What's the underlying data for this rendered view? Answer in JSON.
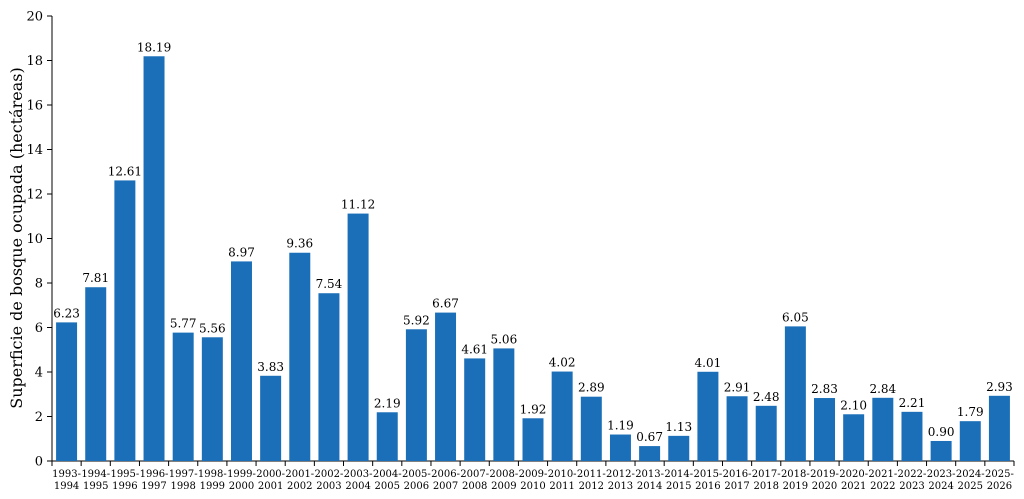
{
  "chart_data": {
    "type": "bar",
    "title": "",
    "xlabel": "",
    "ylabel": "Superficie de bosque ocupada (hectáreas)",
    "ylim": [
      0,
      20
    ],
    "yticks": [
      0,
      2,
      4,
      6,
      8,
      10,
      12,
      14,
      16,
      18,
      20
    ],
    "grid": false,
    "bar_color": "#1a6fb8",
    "categories": [
      [
        "1993-",
        "1994"
      ],
      [
        "1994-",
        "1995"
      ],
      [
        "1995-",
        "1996"
      ],
      [
        "1996-",
        "1997"
      ],
      [
        "1997-",
        "1998"
      ],
      [
        "1998-",
        "1999"
      ],
      [
        "1999-",
        "2000"
      ],
      [
        "2000-",
        "2001"
      ],
      [
        "2001-",
        "2002"
      ],
      [
        "2002-",
        "2003"
      ],
      [
        "2003-",
        "2004"
      ],
      [
        "2004-",
        "2005"
      ],
      [
        "2005-",
        "2006"
      ],
      [
        "2006-",
        "2007"
      ],
      [
        "2007-",
        "2008"
      ],
      [
        "2008-",
        "2009"
      ],
      [
        "2009-",
        "2010"
      ],
      [
        "2010-",
        "2011"
      ],
      [
        "2011-",
        "2012"
      ],
      [
        "2012-",
        "2013"
      ],
      [
        "2013-",
        "2014"
      ],
      [
        "2014-",
        "2015"
      ],
      [
        "2015-",
        "2016"
      ],
      [
        "2016-",
        "2017"
      ],
      [
        "2017-",
        "2018"
      ],
      [
        "2018-",
        "2019"
      ],
      [
        "2019-",
        "2020"
      ],
      [
        "2020-",
        "2021"
      ],
      [
        "2021-",
        "2022"
      ],
      [
        "2022-",
        "2023"
      ],
      [
        "2023-",
        "2024"
      ],
      [
        "2024-",
        "2025"
      ],
      [
        "2025-",
        "2026"
      ]
    ],
    "values": [
      6.23,
      7.81,
      12.61,
      18.19,
      5.77,
      5.56,
      8.97,
      3.83,
      9.36,
      7.54,
      11.12,
      2.19,
      5.92,
      6.67,
      4.61,
      5.06,
      1.92,
      4.02,
      2.89,
      1.19,
      0.67,
      1.13,
      4.01,
      2.91,
      2.48,
      6.05,
      2.83,
      2.1,
      2.84,
      2.21,
      0.9,
      1.79,
      2.93
    ],
    "value_labels": [
      "6.23",
      "7.81",
      "12.61",
      "18.19",
      "5.77",
      "5.56",
      "8.97",
      "3.83",
      "9.36",
      "7.54",
      "11.12",
      "2.19",
      "5.92",
      "6.67",
      "4.61",
      "5.06",
      "1.92",
      "4.02",
      "2.89",
      "1.19",
      "0.67",
      "1.13",
      "4.01",
      "2.91",
      "2.48",
      "6.05",
      "2.83",
      "2.10",
      "2.84",
      "2.21",
      "0.90",
      "1.79",
      "2.93"
    ]
  }
}
